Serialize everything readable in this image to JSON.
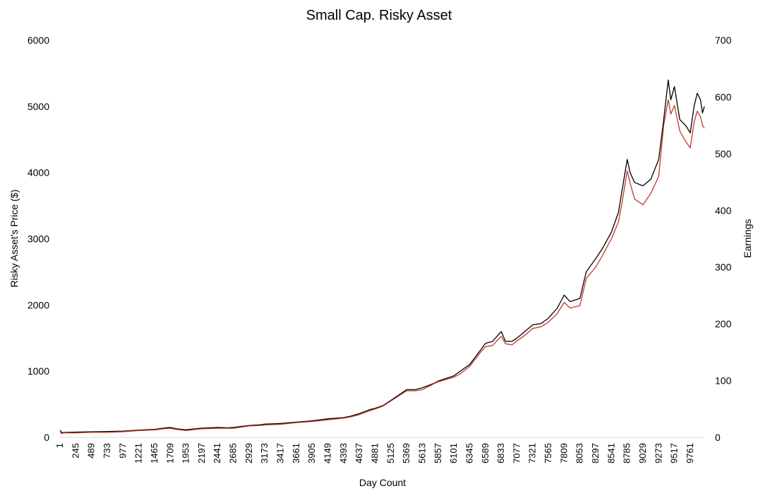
{
  "chart_data": {
    "type": "line",
    "title": "Small Cap. Risky Asset",
    "xlabel": "Day Count",
    "ylabel_left": "Risky Asset's Price ($)",
    "ylabel_right": "Earnings",
    "xlim": [
      1,
      9980
    ],
    "ylim_left": [
      0,
      6000
    ],
    "ylim_right": [
      0,
      700
    ],
    "y_ticks_left": [
      0,
      1000,
      2000,
      3000,
      4000,
      5000,
      6000
    ],
    "y_ticks_right": [
      0,
      100,
      200,
      300,
      400,
      500,
      600,
      700
    ],
    "x_ticks": [
      1,
      245,
      489,
      733,
      977,
      1221,
      1465,
      1709,
      1953,
      2197,
      2441,
      2685,
      2929,
      3173,
      3417,
      3661,
      3905,
      4149,
      4393,
      4637,
      4881,
      5125,
      5369,
      5613,
      5857,
      6101,
      6345,
      6589,
      6833,
      7077,
      7321,
      7565,
      7809,
      8053,
      8297,
      8541,
      8785,
      9029,
      9273,
      9517,
      9761
    ],
    "grid": false,
    "legend": "none",
    "series": [
      {
        "axis": "left",
        "color": "#000000",
        "x": [
          1,
          30,
          60,
          245,
          489,
          733,
          977,
          1221,
          1465,
          1600,
          1709,
          1800,
          1953,
          2100,
          2197,
          2441,
          2600,
          2685,
          2929,
          3100,
          3173,
          3417,
          3661,
          3905,
          4149,
          4393,
          4500,
          4637,
          4800,
          4881,
          5000,
          5125,
          5369,
          5500,
          5613,
          5800,
          5857,
          6101,
          6200,
          6345,
          6500,
          6589,
          6700,
          6833,
          6900,
          7000,
          7077,
          7200,
          7321,
          7450,
          7565,
          7700,
          7809,
          7900,
          8053,
          8150,
          8297,
          8400,
          8541,
          8650,
          8700,
          8785,
          8830,
          8900,
          9029,
          9150,
          9273,
          9350,
          9420,
          9460,
          9517,
          9600,
          9700,
          9761,
          9820,
          9870,
          9920,
          9950,
          9980
        ],
        "y": [
          110,
          70,
          75,
          80,
          85,
          90,
          95,
          110,
          120,
          140,
          150,
          130,
          115,
          130,
          140,
          150,
          145,
          150,
          180,
          190,
          200,
          210,
          230,
          250,
          280,
          300,
          320,
          360,
          420,
          440,
          480,
          560,
          720,
          720,
          750,
          820,
          850,
          930,
          1000,
          1100,
          1300,
          1420,
          1450,
          1600,
          1450,
          1450,
          1500,
          1600,
          1700,
          1720,
          1800,
          1950,
          2150,
          2050,
          2100,
          2500,
          2700,
          2850,
          3100,
          3400,
          3700,
          4200,
          4000,
          3850,
          3800,
          3900,
          4200,
          4800,
          5400,
          5100,
          5300,
          4800,
          4700,
          4600,
          5000,
          5200,
          5100,
          4900,
          5000
        ]
      },
      {
        "axis": "right",
        "color": "#c0392b",
        "x": [
          1,
          30,
          60,
          245,
          489,
          733,
          977,
          1221,
          1465,
          1600,
          1709,
          1800,
          1953,
          2100,
          2197,
          2441,
          2600,
          2685,
          2929,
          3100,
          3173,
          3417,
          3661,
          3905,
          4149,
          4393,
          4500,
          4637,
          4800,
          4881,
          5000,
          5125,
          5369,
          5500,
          5613,
          5800,
          5857,
          6101,
          6200,
          6345,
          6500,
          6589,
          6700,
          6833,
          6900,
          7000,
          7077,
          7200,
          7321,
          7450,
          7565,
          7700,
          7809,
          7900,
          8053,
          8150,
          8297,
          8400,
          8541,
          8650,
          8700,
          8785,
          8830,
          8900,
          9029,
          9150,
          9273,
          9350,
          9420,
          9460,
          9517,
          9600,
          9700,
          9761,
          9820,
          9870,
          9920,
          9950,
          9980
        ],
        "y": [
          8,
          7,
          8,
          8,
          9,
          9,
          10,
          12,
          13,
          15,
          16,
          14,
          12,
          14,
          15,
          16,
          16,
          16,
          20,
          21,
          22,
          23,
          26,
          28,
          31,
          34,
          36,
          40,
          47,
          50,
          55,
          64,
          82,
          82,
          84,
          95,
          98,
          106,
          112,
          125,
          148,
          160,
          162,
          178,
          165,
          163,
          170,
          180,
          192,
          195,
          203,
          218,
          238,
          228,
          232,
          280,
          300,
          320,
          350,
          380,
          410,
          470,
          448,
          420,
          410,
          430,
          460,
          550,
          595,
          570,
          585,
          540,
          520,
          510,
          555,
          575,
          565,
          550,
          545
        ]
      }
    ]
  }
}
